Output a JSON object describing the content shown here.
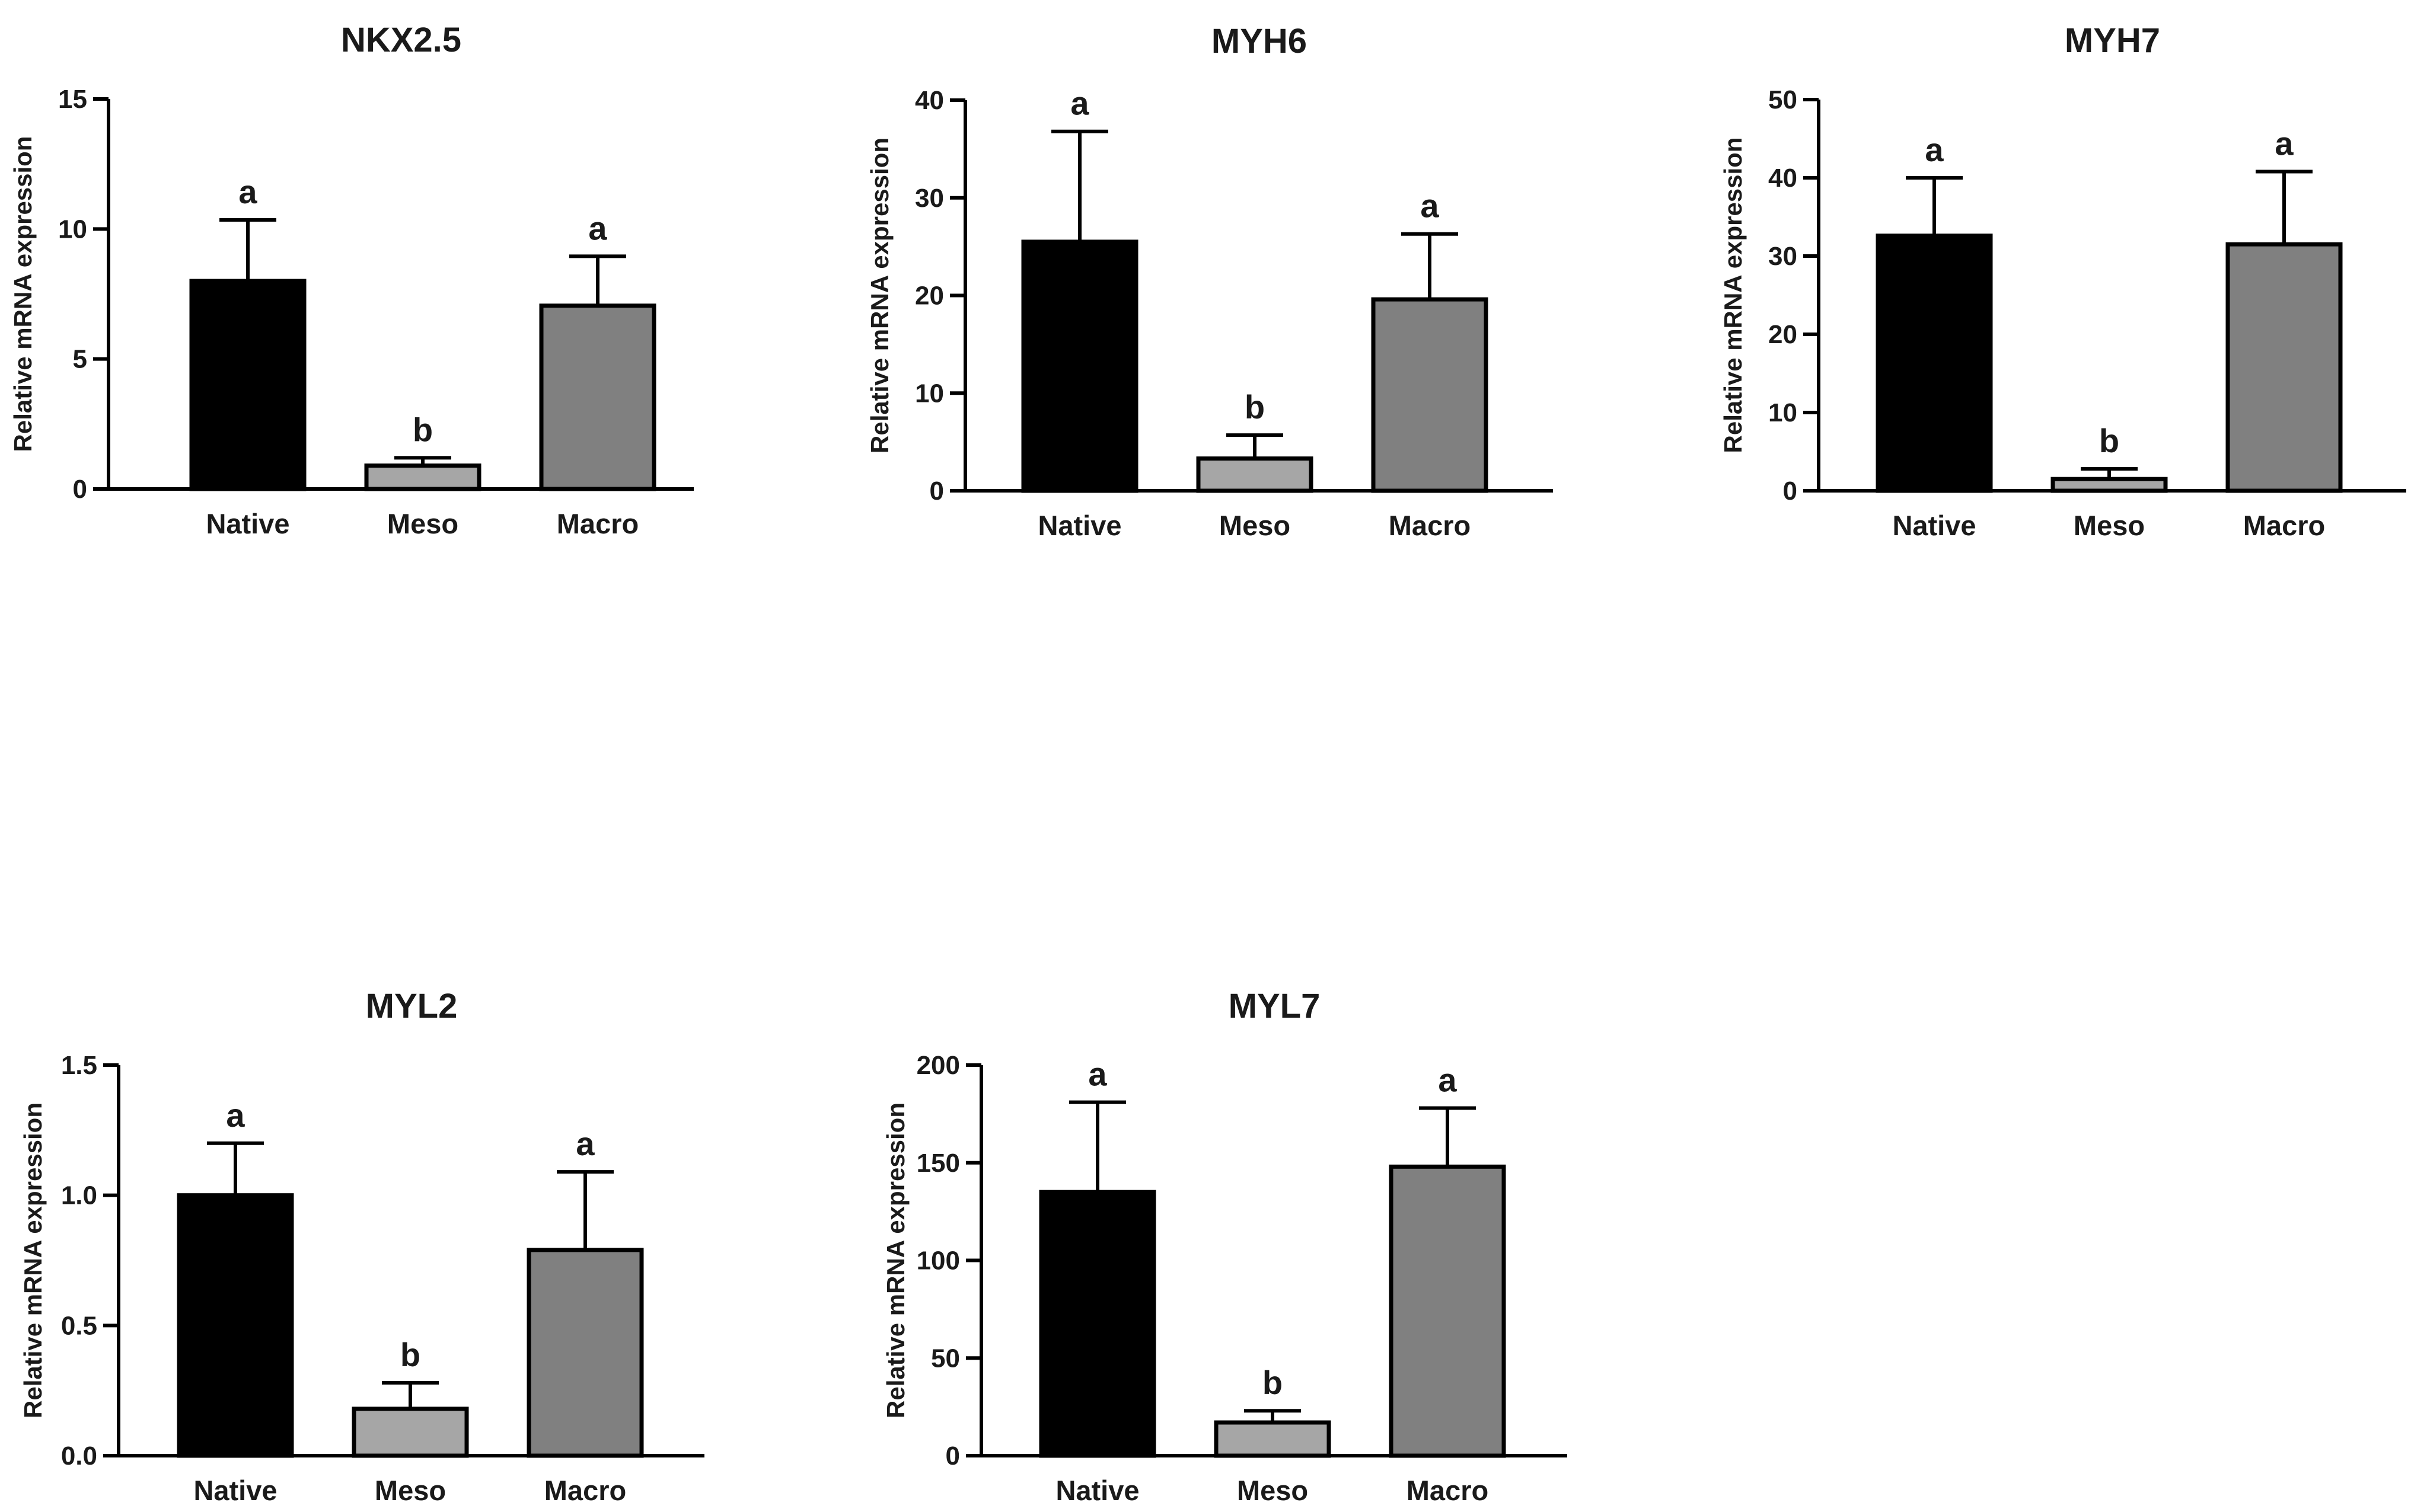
{
  "chart_data": [
    {
      "type": "bar",
      "title": "NKX2.5",
      "ylabel": "Relative mRNA expression",
      "categories": [
        "Native",
        "Meso",
        "Macro"
      ],
      "values": [
        8.0,
        0.9,
        7.05
      ],
      "errors": [
        2.35,
        0.3,
        1.9
      ],
      "significance": [
        "a",
        "b",
        "a"
      ],
      "ylim": [
        0,
        15
      ],
      "yticks": [
        0,
        5,
        10,
        15
      ],
      "ytick_labels": [
        "0",
        "5",
        "10",
        "15"
      ],
      "colors": [
        "#000000",
        "#a6a6a6",
        "#808080"
      ]
    },
    {
      "type": "bar",
      "title": "MYH6",
      "ylabel": "Relative mRNA expression",
      "categories": [
        "Native",
        "Meso",
        "Macro"
      ],
      "values": [
        25.5,
        3.3,
        19.6
      ],
      "errors": [
        11.3,
        2.4,
        6.7
      ],
      "significance": [
        "a",
        "b",
        "a"
      ],
      "ylim": [
        0,
        40
      ],
      "yticks": [
        0,
        10,
        20,
        30,
        40
      ],
      "ytick_labels": [
        "0",
        "10",
        "20",
        "30",
        "40"
      ],
      "colors": [
        "#000000",
        "#a6a6a6",
        "#808080"
      ]
    },
    {
      "type": "bar",
      "title": "MYH7",
      "ylabel": "Relative mRNA expression",
      "categories": [
        "Native",
        "Meso",
        "Macro"
      ],
      "values": [
        32.6,
        1.5,
        31.5
      ],
      "errors": [
        7.4,
        1.3,
        9.3
      ],
      "significance": [
        "a",
        "b",
        "a"
      ],
      "ylim": [
        0,
        50
      ],
      "yticks": [
        0,
        10,
        20,
        30,
        40,
        50
      ],
      "ytick_labels": [
        "0",
        "10",
        "20",
        "30",
        "40",
        "50"
      ],
      "colors": [
        "#000000",
        "#a6a6a6",
        "#808080"
      ]
    },
    {
      "type": "bar",
      "title": "MYL2",
      "ylabel": "Relative mRNA expression",
      "categories": [
        "Native",
        "Meso",
        "Macro"
      ],
      "values": [
        1.0,
        0.18,
        0.79
      ],
      "errors": [
        0.2,
        0.1,
        0.3
      ],
      "significance": [
        "a",
        "b",
        "a"
      ],
      "ylim": [
        0,
        1.5
      ],
      "yticks": [
        0,
        0.5,
        1.0,
        1.5
      ],
      "ytick_labels": [
        "0.0",
        "0.5",
        "1.0",
        "1.5"
      ],
      "colors": [
        "#000000",
        "#a6a6a6",
        "#808080"
      ]
    },
    {
      "type": "bar",
      "title": "MYL7",
      "ylabel": "Relative mRNA expression",
      "categories": [
        "Native",
        "Meso",
        "Macro"
      ],
      "values": [
        135,
        17,
        148
      ],
      "errors": [
        46,
        6,
        30
      ],
      "significance": [
        "a",
        "b",
        "a"
      ],
      "ylim": [
        0,
        200
      ],
      "yticks": [
        0,
        50,
        100,
        150,
        200
      ],
      "ytick_labels": [
        "0",
        "50",
        "100",
        "150",
        "200"
      ],
      "colors": [
        "#000000",
        "#a6a6a6",
        "#808080"
      ]
    }
  ]
}
